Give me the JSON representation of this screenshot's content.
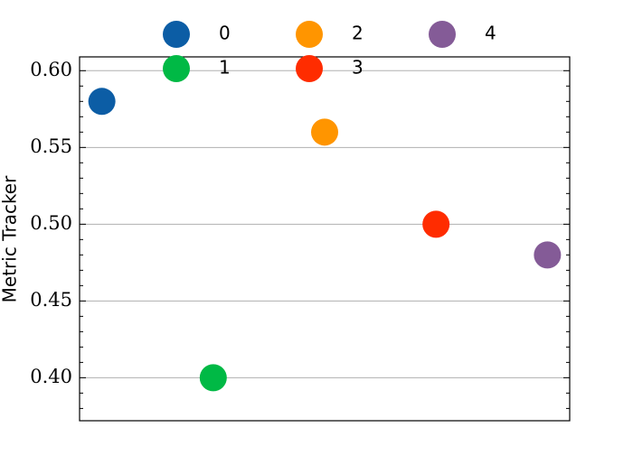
{
  "chart_data": {
    "type": "scatter",
    "ylabel": "Metric Tracker",
    "series": [
      {
        "name": "0",
        "color": "#0c5da5",
        "x": [
          0
        ],
        "values": [
          0.58
        ]
      },
      {
        "name": "1",
        "color": "#00b945",
        "x": [
          1
        ],
        "values": [
          0.4
        ]
      },
      {
        "name": "2",
        "color": "#ff9500",
        "x": [
          2
        ],
        "values": [
          0.56
        ]
      },
      {
        "name": "3",
        "color": "#ff2c00",
        "x": [
          3
        ],
        "values": [
          0.5
        ]
      },
      {
        "name": "4",
        "color": "#845b97",
        "x": [
          4
        ],
        "values": [
          0.48
        ]
      }
    ],
    "xlim": [
      -0.2,
      4.2
    ],
    "ylim": [
      0.372,
      0.609
    ],
    "yticks": [
      {
        "value": 0.4,
        "label": "0.40"
      },
      0.45,
      {
        "value": 0.5,
        "label": "0.50"
      },
      0.55,
      {
        "value": 0.6,
        "label": "0.60"
      }
    ],
    "yminorticks": [
      0.38,
      0.39,
      0.41,
      0.42,
      0.43,
      0.44,
      0.46,
      0.47,
      0.48,
      0.49,
      0.51,
      0.52,
      0.53,
      0.54,
      0.56,
      0.57,
      0.58,
      0.59
    ],
    "grid": true,
    "legend": "top"
  }
}
